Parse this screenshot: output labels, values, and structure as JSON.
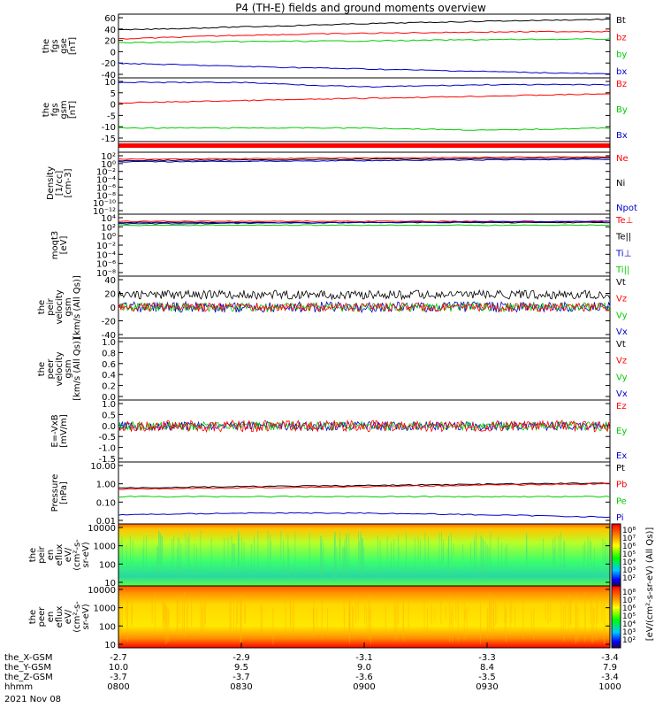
{
  "title": "P4 (TH-E) fields and ground moments overview",
  "colors": {
    "black": "#000000",
    "red": "#ff0000",
    "green": "#00cc00",
    "blue": "#0000cc"
  },
  "panels": [
    {
      "id": "fgs-gse",
      "ylabel": [
        "the",
        "fgs",
        "gse",
        "[nT]"
      ],
      "yticks": [
        "60",
        "40",
        "20",
        "0",
        "-20",
        "-40"
      ],
      "ylim": [
        -40,
        60
      ],
      "scale": "linear",
      "legend": [
        {
          "name": "Bt",
          "color": "black"
        },
        {
          "name": "bz",
          "color": "red"
        },
        {
          "name": "by",
          "color": "green"
        },
        {
          "name": "bx",
          "color": "blue"
        }
      ]
    },
    {
      "id": "fgs-gsm",
      "ylabel": [
        "the",
        "fgs",
        "gsm",
        "[nT]"
      ],
      "yticks": [
        "10",
        "5",
        "0",
        "-5",
        "-10",
        "-15"
      ],
      "ylim": [
        -17,
        11
      ],
      "scale": "linear",
      "legend": [
        {
          "name": "Bz",
          "color": "red"
        },
        {
          "name": "By",
          "color": "green"
        },
        {
          "name": "Bx",
          "color": "blue"
        }
      ]
    },
    {
      "id": "bar",
      "ylabel": [],
      "yticks": [],
      "legend": []
    },
    {
      "id": "density",
      "ylabel": [
        "Density",
        "[1/cc]",
        "[cm-3]"
      ],
      "yticks": [
        "10²",
        "10⁰",
        "10⁻²",
        "10⁻⁴",
        "10⁻⁶",
        "10⁻⁸",
        "10⁻¹⁰",
        "10⁻¹²"
      ],
      "scale": "log",
      "legend": [
        {
          "name": "Ne",
          "color": "red"
        },
        {
          "name": "Ni",
          "color": "black"
        },
        {
          "name": "Npot",
          "color": "blue"
        }
      ]
    },
    {
      "id": "temperature",
      "ylabel": [
        "moqt3",
        "[eV]"
      ],
      "yticks": [
        "10⁴",
        "10²",
        "10⁰",
        "10⁻²",
        "10⁻⁴",
        "10⁻⁶",
        "10⁻⁸"
      ],
      "scale": "log",
      "legend": [
        {
          "name": "Te⊥",
          "color": "red"
        },
        {
          "name": "Te||",
          "color": "black"
        },
        {
          "name": "Ti⊥",
          "color": "blue"
        },
        {
          "name": "Ti||",
          "color": "green"
        }
      ]
    },
    {
      "id": "peir-velocity",
      "ylabel": [
        "the",
        "peir",
        "velocity",
        "gsm",
        "[km/s (All Qs)]"
      ],
      "yticks": [
        "40",
        "20",
        "0",
        "-20",
        "-40"
      ],
      "ylim": [
        -40,
        40
      ],
      "scale": "linear",
      "legend": [
        {
          "name": "Vt",
          "color": "black"
        },
        {
          "name": "Vz",
          "color": "red"
        },
        {
          "name": "Vy",
          "color": "green"
        },
        {
          "name": "Vx",
          "color": "blue"
        }
      ]
    },
    {
      "id": "peer-velocity",
      "ylabel": [
        "the",
        "peer",
        "velocity",
        "gsm",
        "[km/s (All Qs)]"
      ],
      "yticks": [
        "1.0",
        "0.8",
        "0.6",
        "0.4",
        "0.2",
        "0.0"
      ],
      "ylim": [
        0,
        1
      ],
      "scale": "linear",
      "legend": [
        {
          "name": "Vt",
          "color": "black"
        },
        {
          "name": "Vz",
          "color": "red"
        },
        {
          "name": "Vy",
          "color": "green"
        },
        {
          "name": "Vx",
          "color": "blue"
        }
      ]
    },
    {
      "id": "efield",
      "ylabel": [
        "E=-VxB",
        "[mV/m]"
      ],
      "yticks": [
        "1.0",
        "0.5",
        "0.0",
        "-0.5",
        "-1.0",
        "-1.5"
      ],
      "ylim": [
        -1.5,
        1.0
      ],
      "scale": "linear",
      "legend": [
        {
          "name": "Ez",
          "color": "red"
        },
        {
          "name": "Ey",
          "color": "green"
        },
        {
          "name": "Ex",
          "color": "blue"
        }
      ]
    },
    {
      "id": "pressure",
      "ylabel": [
        "Pressure",
        "[nPa]"
      ],
      "yticks": [
        "10.00",
        "1.00",
        "0.10",
        "0.01"
      ],
      "scale": "log",
      "legend": [
        {
          "name": "Pt",
          "color": "black"
        },
        {
          "name": "Pb",
          "color": "red"
        },
        {
          "name": "Pe",
          "color": "green"
        },
        {
          "name": "Pi",
          "color": "blue"
        }
      ]
    },
    {
      "id": "peir-eflux",
      "ylabel": [
        "the",
        "peir",
        "en",
        "eflux",
        "eV/",
        "(cm²-s-",
        "sr-eV)"
      ],
      "yticks": [
        "10000",
        "1000",
        "100",
        "10"
      ],
      "scale": "log",
      "legend": []
    },
    {
      "id": "peer-eflux",
      "ylabel": [
        "the",
        "peer",
        "en",
        "eflux",
        "eV/",
        "(cm²-s-",
        "sr-eV)"
      ],
      "yticks": [
        "10000",
        "1000",
        "100",
        "10"
      ],
      "scale": "log",
      "legend": []
    }
  ],
  "colorbar": {
    "ticks1": [
      "10⁸",
      "10⁷",
      "10⁶",
      "10⁵",
      "10⁴",
      "10³",
      "10²"
    ],
    "ticks2": [
      "10⁸",
      "10⁷",
      "10⁶",
      "10⁵",
      "10⁴",
      "10³",
      "10²"
    ],
    "label": "[eV/(cm²-s-sr-eV) (All Qs)]"
  },
  "xaxis": {
    "rows": [
      {
        "label": "the_X-GSM",
        "values": [
          "-2.7",
          "-2.9",
          "-3.1",
          "-3.3",
          "-3.4"
        ]
      },
      {
        "label": "the_Y-GSM",
        "values": [
          "10.0",
          "9.5",
          "9.0",
          "8.4",
          "7.9"
        ]
      },
      {
        "label": "the_Z-GSM",
        "values": [
          "-3.7",
          "-3.7",
          "-3.6",
          "-3.5",
          "-3.4"
        ]
      },
      {
        "label": "hhmm",
        "values": [
          "0800",
          "0830",
          "0900",
          "0930",
          "1000"
        ]
      }
    ],
    "date": "2021 Nov 08"
  },
  "chart_data": {
    "type": "line",
    "title": "P4 (TH-E) fields and ground moments overview",
    "x": [
      "0800",
      "0830",
      "0900",
      "0930",
      "1000"
    ],
    "series": [
      {
        "name": "Bt",
        "panel": "fgs-gse",
        "values": [
          35,
          40,
          45,
          49,
          52
        ]
      },
      {
        "name": "bz",
        "panel": "fgs-gse",
        "values": [
          21,
          27,
          30,
          32,
          33
        ]
      },
      {
        "name": "by",
        "panel": "fgs-gse",
        "values": [
          15,
          17,
          18,
          20,
          21
        ]
      },
      {
        "name": "bx",
        "panel": "fgs-gse",
        "values": [
          -17,
          -22,
          -26,
          -30,
          -34
        ]
      },
      {
        "name": "Bz",
        "panel": "fgs-gsm",
        "values": [
          0,
          1,
          2,
          3,
          4
        ]
      },
      {
        "name": "By",
        "panel": "fgs-gsm",
        "values": [
          -11,
          -11,
          -11,
          -12,
          -11
        ]
      },
      {
        "name": "Bx",
        "panel": "fgs-gsm",
        "values": [
          9,
          9,
          7,
          8,
          8
        ]
      },
      {
        "name": "Pt",
        "panel": "pressure",
        "values": [
          0.6,
          0.7,
          0.8,
          0.95,
          1.1
        ]
      },
      {
        "name": "Pb",
        "panel": "pressure",
        "values": [
          0.5,
          0.6,
          0.7,
          0.85,
          1.0
        ]
      },
      {
        "name": "Pe",
        "panel": "pressure",
        "values": [
          0.2,
          0.2,
          0.2,
          0.2,
          0.2
        ]
      },
      {
        "name": "Pi",
        "panel": "pressure",
        "values": [
          0.02,
          0.025,
          0.025,
          0.02,
          0.015
        ]
      }
    ]
  }
}
